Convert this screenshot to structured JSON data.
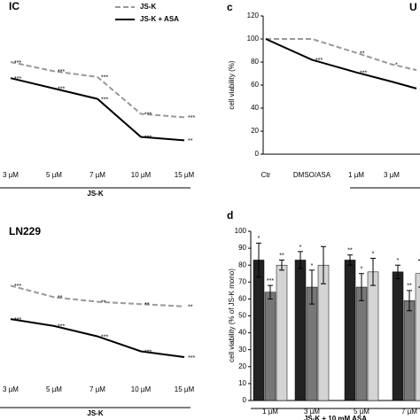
{
  "chart_data": [
    {
      "type": "line",
      "title": "IC",
      "xlabel": "JS-K",
      "categories": [
        "3 µM",
        "5 µM",
        "7 µM",
        "10 µM",
        "15 µM"
      ],
      "ylim": [
        0,
        120
      ],
      "series": [
        {
          "name": "JS-K",
          "color": "#999999",
          "dash": true,
          "values": [
            80,
            72,
            67,
            35,
            32
          ],
          "significance": [
            "***",
            "***",
            "***",
            "***",
            "***"
          ]
        },
        {
          "name": "JS-K + ASA",
          "color": "#000000",
          "dash": false,
          "values": [
            66,
            57,
            48,
            15,
            12
          ],
          "significance": [
            "***",
            "***",
            "***",
            "***",
            "**"
          ]
        }
      ]
    },
    {
      "type": "line",
      "panel": "c",
      "title": "U",
      "ylabel": "cell viability (%)",
      "categories": [
        "Ctr",
        "DMSO/ASA",
        "1 µM",
        "3 µM",
        null
      ],
      "ylim": [
        0,
        120
      ],
      "yticks": [
        0,
        20,
        40,
        60,
        80,
        100,
        120
      ],
      "series": [
        {
          "color": "#999999",
          "dash": true,
          "values": [
            100,
            100,
            88,
            78,
            73
          ],
          "significance": [
            null,
            null,
            "**",
            "*",
            "***"
          ]
        },
        {
          "color": "#000000",
          "dash": false,
          "values": [
            100,
            82,
            71,
            63,
            57
          ],
          "significance": [
            null,
            "***",
            "***",
            null,
            "***"
          ]
        }
      ]
    },
    {
      "type": "line",
      "title": "LN229",
      "xlabel": "JS-K",
      "categories": [
        "3 µM",
        "5 µM",
        "7 µM",
        "10 µM",
        "15 µM"
      ],
      "ylim": [
        0,
        120
      ],
      "series": [
        {
          "color": "#999999",
          "dash": true,
          "values": [
            72,
            62,
            58,
            56,
            54
          ],
          "significance": [
            "***",
            "**",
            "**",
            "**",
            "**"
          ]
        },
        {
          "color": "#000000",
          "dash": false,
          "values": [
            43,
            37,
            28,
            15,
            10
          ],
          "significance": [
            "***",
            "***",
            "***",
            "***",
            "***"
          ]
        }
      ]
    },
    {
      "type": "bar",
      "panel": "d",
      "ylabel": "cell viability (% of JS-K mono)",
      "xlabel": "JS-K + 10 mM ASA",
      "categories": [
        "1 µM",
        "3 µM",
        "5 µM",
        "7 µM"
      ],
      "ylim": [
        0,
        100
      ],
      "yticks": [
        0,
        10,
        20,
        30,
        40,
        50,
        60,
        70,
        80,
        90,
        100
      ],
      "series": [
        {
          "color": "#222222",
          "values": [
            83,
            83,
            83,
            76
          ],
          "errors": [
            10,
            5,
            3,
            4
          ],
          "significance": [
            "*",
            "*",
            "**",
            "*"
          ]
        },
        {
          "color": "#777777",
          "values": [
            64,
            67,
            67,
            59
          ],
          "errors": [
            4,
            10,
            8,
            6
          ],
          "significance": [
            "***",
            "*",
            "*",
            "**"
          ]
        },
        {
          "color": "#d4d4d4",
          "values": [
            80,
            80,
            76,
            75
          ],
          "errors": [
            3,
            11,
            8,
            8
          ],
          "significance": [
            "**",
            null,
            "*",
            "*"
          ]
        }
      ]
    }
  ]
}
